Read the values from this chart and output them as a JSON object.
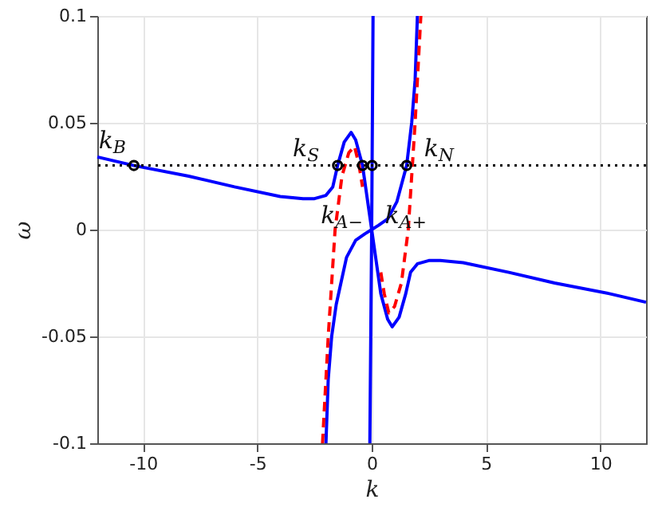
{
  "chart_data": {
    "type": "line",
    "xlabel": "k",
    "ylabel": "ω",
    "xlim": [
      -12,
      12
    ],
    "xticks": [
      -10,
      -5,
      0,
      5,
      10
    ],
    "ylim": [
      -0.1,
      0.1
    ],
    "yticks": [
      -0.1,
      -0.05,
      0,
      0.05,
      0.1
    ],
    "grid": true,
    "line_style": "solid",
    "series": [
      {
        "color": "#0000ff",
        "x": [
          -12,
          -10.4,
          -8,
          -6,
          -4,
          -3,
          -2.5,
          -2,
          -1.7,
          -1.49,
          -1.2,
          -0.9,
          -0.7,
          -0.4,
          -0.2,
          0,
          0.2,
          0.4,
          0.7,
          0.9,
          1.2,
          1.49,
          1.7,
          2,
          2.5,
          3,
          4,
          6,
          8,
          10.4,
          12
        ],
        "values": [
          0.034,
          0.03,
          0.025,
          0.02,
          0.0155,
          0.0145,
          0.0145,
          0.016,
          0.02,
          0.03,
          0.041,
          0.0455,
          0.042,
          0.03,
          0.015,
          0,
          -0.015,
          -0.03,
          -0.042,
          -0.0455,
          -0.041,
          -0.03,
          -0.02,
          -0.016,
          -0.0145,
          -0.0145,
          -0.0155,
          -0.02,
          -0.025,
          -0.03,
          -0.034
        ]
      },
      {
        "color": "#0000ff",
        "x": [
          -2.0,
          -1.9,
          -1.75,
          -1.55,
          -1.1,
          -0.7,
          -0.3,
          0,
          0.3,
          0.7,
          1.1,
          1.53,
          1.75,
          1.9,
          2.0
        ],
        "values": [
          -0.1,
          -0.07,
          -0.05,
          -0.035,
          -0.013,
          -0.005,
          -0.002,
          0,
          0.002,
          0.005,
          0.013,
          0.03,
          0.05,
          0.07,
          0.1
        ]
      },
      {
        "color": "#0000ff",
        "x": [
          -0.08,
          0,
          0.06
        ],
        "values": [
          -0.1,
          0,
          0.1
        ]
      },
      {
        "color": "#ff0000",
        "line_style": "dashed",
        "x": [
          -2.15,
          -1.9,
          -1.6,
          -1.3,
          -1.0,
          -0.75,
          -0.55,
          -0.4
        ],
        "values": [
          -0.1,
          -0.05,
          0,
          0.025,
          0.036,
          0.039,
          0.03,
          0.02
        ]
      },
      {
        "color": "#ff0000",
        "line_style": "dashed",
        "x": [
          0.4,
          0.55,
          0.75,
          1.0,
          1.3,
          1.6,
          1.9,
          2.15
        ],
        "values": [
          -0.02,
          -0.03,
          -0.039,
          -0.036,
          -0.025,
          0,
          0.05,
          0.1
        ]
      },
      {
        "type": "scatter",
        "color": "#000000",
        "marker": "circle",
        "x": [
          -10.4,
          -1.49,
          -0.4,
          0.02,
          1.53
        ],
        "values": [
          0.03,
          0.03,
          0.03,
          0.03,
          0.03
        ]
      }
    ],
    "ref_lines": [
      {
        "axis": "y",
        "value": 0.03,
        "color": "#000000",
        "line_style": "dotted"
      }
    ],
    "annotations": [
      {
        "text": "k$_{B}$",
        "x": -10.4,
        "y": 0.03
      },
      {
        "text": "k$_{S}$",
        "x": -1.49,
        "y": 0.03
      },
      {
        "text": "k$_{N}$",
        "x": 1.53,
        "y": 0.03
      },
      {
        "text": "k$_{A−}$",
        "x": -0.4,
        "y": 0.03
      },
      {
        "text": "k$_{A+}$",
        "x": 0.02,
        "y": 0.03
      }
    ]
  }
}
